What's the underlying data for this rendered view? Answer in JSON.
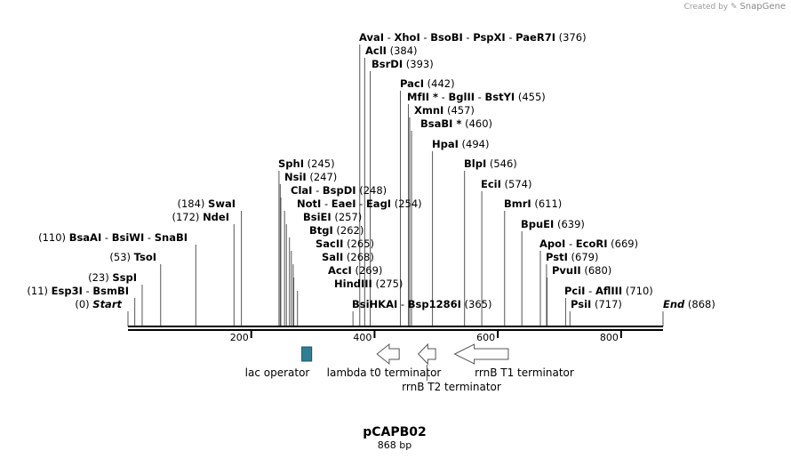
{
  "credit": {
    "prefix": "Created by",
    "brand": "SnapGene"
  },
  "plasmid": {
    "name": "pCAPB02",
    "length_label": "868 bp",
    "length": 868
  },
  "ticks": [
    200,
    400,
    600,
    800
  ],
  "sites": [
    {
      "pos": 376,
      "parts": [
        "AvaI",
        "XhoI",
        "BsoBI",
        "PspXI",
        "PaeR7I"
      ],
      "pos_label": "(376)"
    },
    {
      "pos": 384,
      "parts": [
        "AclI"
      ],
      "pos_label": "(384)"
    },
    {
      "pos": 393,
      "parts": [
        "BsrDI"
      ],
      "pos_label": "(393)"
    },
    {
      "pos": 442,
      "parts": [
        "PacI"
      ],
      "pos_label": "(442)"
    },
    {
      "pos": 455,
      "parts": [
        "MfII *",
        "BglII",
        "BstYI"
      ],
      "pos_label": "(455)"
    },
    {
      "pos": 457,
      "parts": [
        "XmnI"
      ],
      "pos_label": "(457)"
    },
    {
      "pos": 460,
      "parts": [
        "BsaBI *"
      ],
      "pos_label": "(460)"
    },
    {
      "pos": 494,
      "parts": [
        "HpaI"
      ],
      "pos_label": "(494)"
    },
    {
      "pos": 546,
      "parts": [
        "BlpI"
      ],
      "pos_label": "(546)"
    },
    {
      "pos": 574,
      "parts": [
        "EciI"
      ],
      "pos_label": "(574)"
    },
    {
      "pos": 611,
      "parts": [
        "BmrI"
      ],
      "pos_label": "(611)"
    },
    {
      "pos": 639,
      "parts": [
        "BpuEI"
      ],
      "pos_label": "(639)"
    },
    {
      "pos": 669,
      "parts": [
        "ApoI",
        "EcoRI"
      ],
      "pos_label": "(669)"
    },
    {
      "pos": 679,
      "parts": [
        "PstI"
      ],
      "pos_label": "(679)"
    },
    {
      "pos": 680,
      "parts": [
        "PvuII"
      ],
      "pos_label": "(680)"
    },
    {
      "pos": 710,
      "parts": [
        "PciI",
        "AflIII"
      ],
      "pos_label": "(710)"
    },
    {
      "pos": 717,
      "parts": [
        "PsiI"
      ],
      "pos_label": "(717)"
    },
    {
      "pos": 868,
      "parts": [
        "End"
      ],
      "pos_label": "(868)",
      "italic": true
    },
    {
      "pos": 245,
      "parts": [
        "SphI"
      ],
      "pos_label": "(245)"
    },
    {
      "pos": 247,
      "parts": [
        "NsiI"
      ],
      "pos_label": "(247)"
    },
    {
      "pos": 248,
      "parts": [
        "ClaI",
        "BspDI"
      ],
      "pos_label": "(248)"
    },
    {
      "pos": 254,
      "parts": [
        "NotI",
        "EaeI",
        "EagI"
      ],
      "pos_label": "(254)"
    },
    {
      "pos": 257,
      "parts": [
        "BsiEI"
      ],
      "pos_label": "(257)"
    },
    {
      "pos": 262,
      "parts": [
        "BtgI"
      ],
      "pos_label": "(262)"
    },
    {
      "pos": 265,
      "parts": [
        "SacII"
      ],
      "pos_label": "(265)"
    },
    {
      "pos": 268,
      "parts": [
        "SalI"
      ],
      "pos_label": "(268)"
    },
    {
      "pos": 269,
      "parts": [
        "AccI"
      ],
      "pos_label": "(269)"
    },
    {
      "pos": 275,
      "parts": [
        "HindIII"
      ],
      "pos_label": "(275)"
    },
    {
      "pos": 365,
      "parts": [
        "BsiHKAI",
        "Bsp1286I"
      ],
      "pos_label": "(365)"
    },
    {
      "pos": 184,
      "parts": [
        "SwaI"
      ],
      "pos_label": "(184)"
    },
    {
      "pos": 172,
      "parts": [
        "NdeI"
      ],
      "pos_label": "(172)"
    },
    {
      "pos": 110,
      "parts": [
        "BsaAI",
        "BsiWI",
        "SnaBI"
      ],
      "pos_label": "(110)"
    },
    {
      "pos": 53,
      "parts": [
        "TsoI"
      ],
      "pos_label": "(53)"
    },
    {
      "pos": 23,
      "parts": [
        "SspI"
      ],
      "pos_label": "(23)"
    },
    {
      "pos": 11,
      "parts": [
        "Esp3I",
        "BsmBI"
      ],
      "pos_label": "(11)"
    },
    {
      "pos": 0,
      "parts": [
        "Start"
      ],
      "pos_label": "(0)",
      "italic": true
    }
  ],
  "features": [
    {
      "name": "lac operator",
      "start": 282,
      "end": 298,
      "shape": "box",
      "color": "#2e7f95"
    },
    {
      "name": "lambda t0 terminator",
      "start": 404,
      "end": 440,
      "shape": "arrow-left",
      "color": "#ffffff"
    },
    {
      "name": "rrnB T2 terminator",
      "start": 471,
      "end": 499,
      "shape": "arrow-left",
      "color": "#ffffff"
    },
    {
      "name": "rrnB T1 terminator",
      "start": 530,
      "end": 617,
      "shape": "arrow-left",
      "color": "#ffffff"
    }
  ]
}
